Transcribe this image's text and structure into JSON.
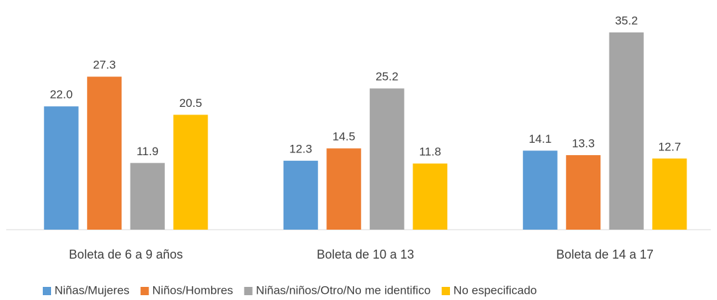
{
  "chart_data": {
    "type": "bar",
    "categories": [
      "Boleta de 6 a 9 años",
      "Boleta de 10 a 13",
      "Boleta de 14 a 17"
    ],
    "series": [
      {
        "name": "Niñas/Mujeres",
        "color": "#5b9bd5",
        "values": [
          22.0,
          12.3,
          14.1
        ],
        "value_labels": [
          "22.0",
          "12.3",
          "14.1"
        ]
      },
      {
        "name": "Niños/Hombres",
        "color": "#ed7d31",
        "values": [
          27.3,
          14.5,
          13.3
        ],
        "value_labels": [
          "27.3",
          "14.5",
          "13.3"
        ]
      },
      {
        "name": "Niñas/niños/Otro/No me identifico",
        "color": "#a5a5a5",
        "values": [
          11.9,
          25.2,
          35.2
        ],
        "value_labels": [
          "11.9",
          "25.2",
          "35.2"
        ]
      },
      {
        "name": "No especificado",
        "color": "#ffc000",
        "values": [
          20.5,
          11.8,
          12.7
        ],
        "value_labels": [
          "20.5",
          "11.8",
          "12.7"
        ]
      }
    ],
    "ylim": [
      0,
      40
    ],
    "legend": "bottom"
  }
}
